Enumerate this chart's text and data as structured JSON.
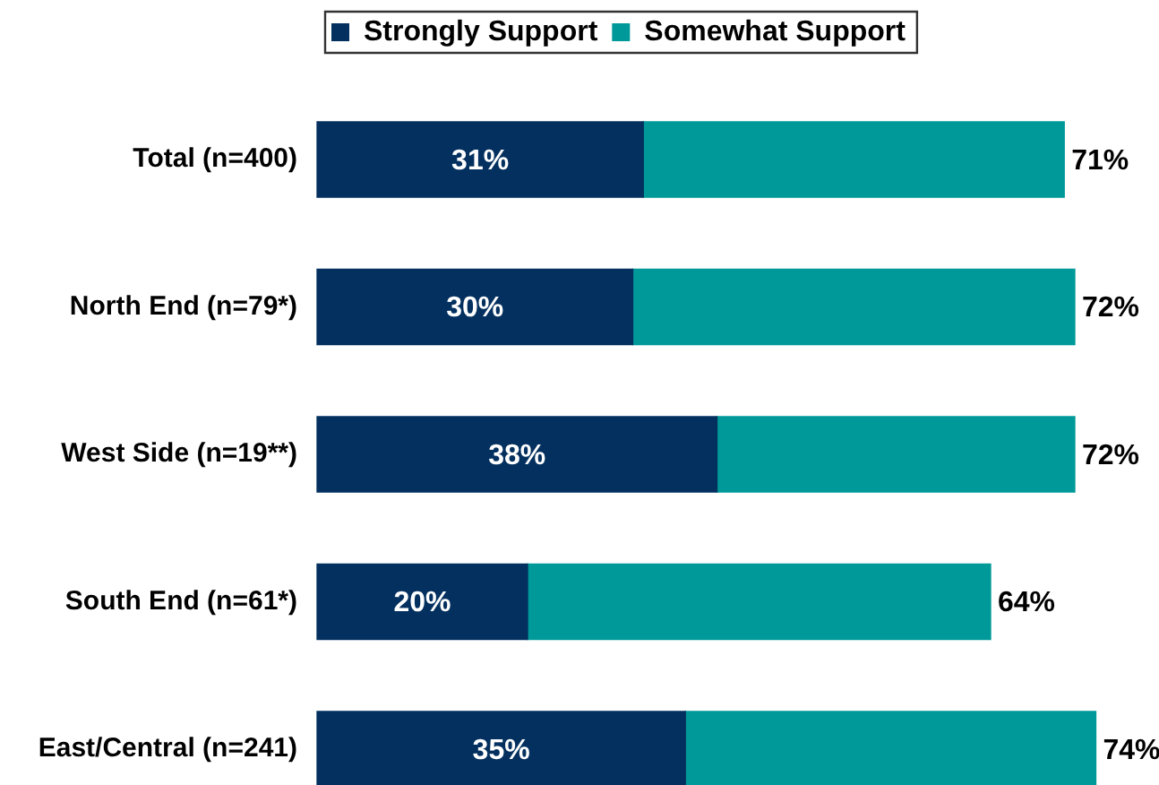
{
  "chart_data": {
    "type": "bar",
    "orientation": "horizontal",
    "stacked": true,
    "categories": [
      "Total (n=400)",
      "North End (n=79*)",
      "West Side (n=19**)",
      "South End (n=61*)",
      "East/Central (n=241)"
    ],
    "series": [
      {
        "name": "Strongly Support",
        "color": "#03305f",
        "values": [
          31,
          30,
          38,
          20,
          35
        ],
        "value_labels": [
          "31%",
          "30%",
          "38%",
          "20%",
          "35%"
        ]
      },
      {
        "name": "Somewhat Support",
        "color": "#009999",
        "values": [
          40,
          42,
          34,
          44,
          39
        ]
      }
    ],
    "totals": [
      "71%",
      "72%",
      "72%",
      "64%",
      "74%"
    ],
    "legend": "top left",
    "tick_labels": "y",
    "grid": false
  }
}
